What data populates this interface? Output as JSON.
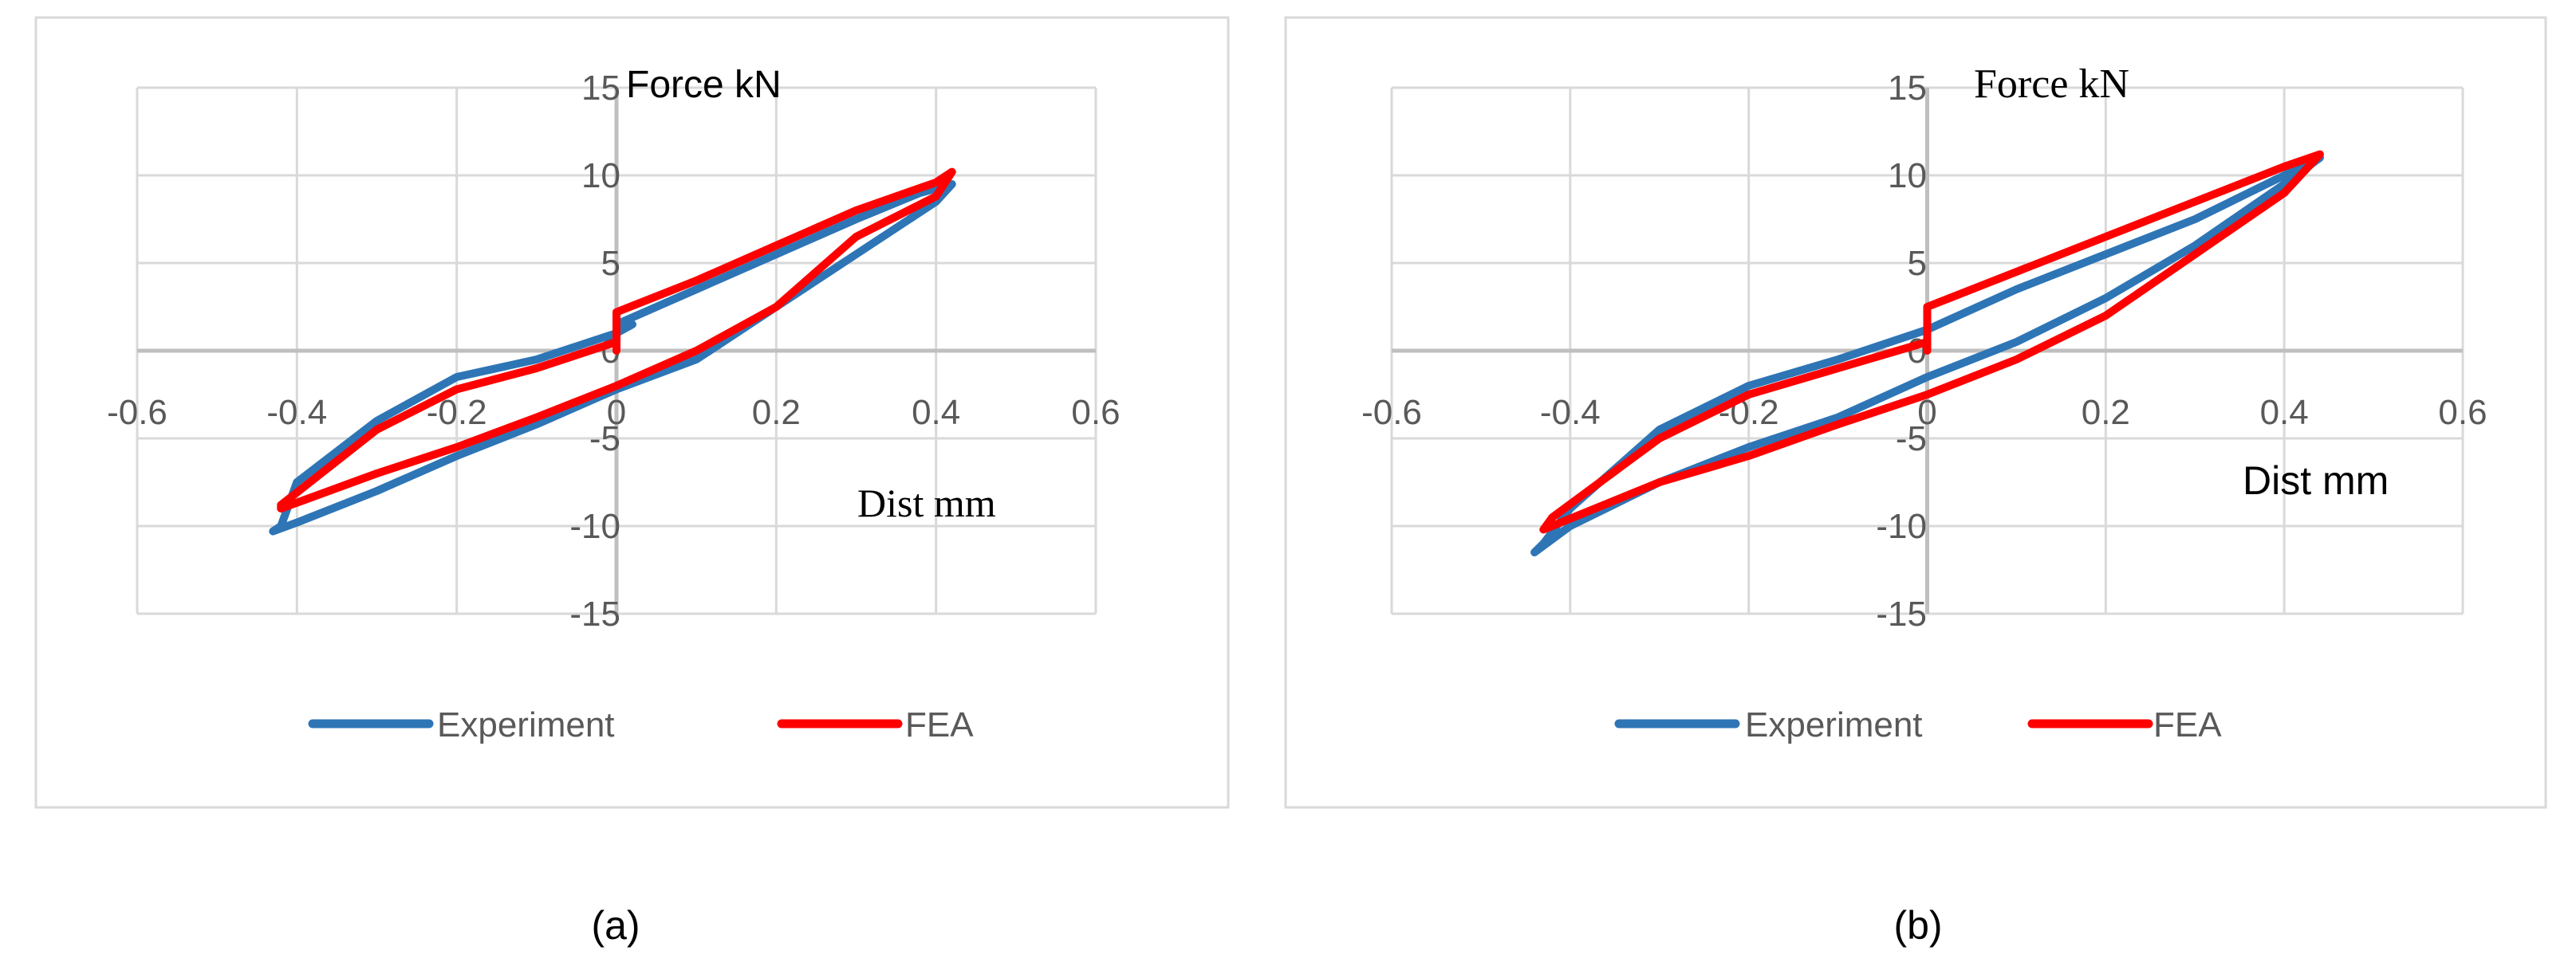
{
  "chart_data": [
    {
      "type": "line",
      "panel_label": "(a)",
      "xlabel": "Dist mm",
      "ylabel": "Force kN",
      "xlim": [
        -0.6,
        0.6
      ],
      "ylim": [
        -15,
        15
      ],
      "x_ticks": [
        "-0.6",
        "-0.4",
        "-0.2",
        "0",
        "0.2",
        "0.4",
        "0.6"
      ],
      "y_ticks": [
        "15",
        "10",
        "5",
        "0",
        "-5",
        "-10",
        "-15"
      ],
      "grid": true,
      "legend_position": "bottom",
      "series": [
        {
          "name": "Experiment",
          "color": "#2E75B6",
          "x": [
            0.0,
            0.1,
            0.2,
            0.3,
            0.38,
            0.42,
            0.4,
            0.3,
            0.2,
            0.1,
            0.0,
            -0.1,
            -0.2,
            -0.3,
            -0.4,
            -0.43,
            -0.42,
            -0.4,
            -0.3,
            -0.2,
            -0.1,
            0.0,
            0.02
          ],
          "y": [
            1.5,
            3.5,
            5.5,
            7.5,
            9.0,
            9.5,
            8.5,
            5.5,
            2.5,
            -0.5,
            -2.2,
            -4.2,
            -6.0,
            -8.0,
            -9.8,
            -10.3,
            -10.0,
            -7.5,
            -4.0,
            -1.5,
            -0.5,
            1.0,
            1.5
          ]
        },
        {
          "name": "FEA",
          "color": "#FF0000",
          "x": [
            0.0,
            0.0,
            0.1,
            0.2,
            0.3,
            0.4,
            0.42,
            0.4,
            0.3,
            0.2,
            0.1,
            0.0,
            -0.1,
            -0.2,
            -0.3,
            -0.42,
            -0.42,
            -0.3,
            -0.2,
            -0.1,
            0.0,
            0.0
          ],
          "y": [
            0.0,
            2.2,
            4.0,
            6.0,
            8.0,
            9.6,
            10.2,
            8.8,
            6.5,
            2.5,
            0.0,
            -2.0,
            -3.8,
            -5.5,
            -7.0,
            -9.0,
            -8.8,
            -4.5,
            -2.2,
            -1.0,
            0.5,
            2.0
          ]
        }
      ]
    },
    {
      "type": "line",
      "panel_label": "(b)",
      "xlabel": "Dist mm",
      "ylabel": "Force kN",
      "xlim": [
        -0.6,
        0.6
      ],
      "ylim": [
        -15,
        15
      ],
      "x_ticks": [
        "-0.6",
        "-0.4",
        "-0.2",
        "0",
        "0.2",
        "0.4",
        "0.6"
      ],
      "y_ticks": [
        "15",
        "10",
        "5",
        "0",
        "-5",
        "-10",
        "-15"
      ],
      "grid": true,
      "legend_position": "bottom",
      "series": [
        {
          "name": "Experiment",
          "color": "#2E75B6",
          "x": [
            0.0,
            0.1,
            0.2,
            0.3,
            0.4,
            0.44,
            0.4,
            0.3,
            0.2,
            0.1,
            0.05,
            0.0,
            -0.1,
            -0.2,
            -0.3,
            -0.4,
            -0.44,
            -0.43,
            -0.4,
            -0.3,
            -0.2,
            -0.1,
            0.0
          ],
          "y": [
            1.2,
            3.5,
            5.5,
            7.5,
            10.0,
            11.0,
            9.5,
            6.0,
            3.0,
            0.5,
            -0.5,
            -1.5,
            -3.8,
            -5.5,
            -7.5,
            -10.0,
            -11.5,
            -11.0,
            -9.0,
            -4.5,
            -2.0,
            -0.5,
            1.2
          ]
        },
        {
          "name": "FEA",
          "color": "#FF0000",
          "x": [
            0.0,
            0.0,
            0.1,
            0.2,
            0.3,
            0.4,
            0.44,
            0.4,
            0.3,
            0.2,
            0.1,
            0.0,
            -0.1,
            -0.2,
            -0.3,
            -0.43,
            -0.42,
            -0.3,
            -0.2,
            -0.1,
            0.0,
            0.0
          ],
          "y": [
            0.0,
            2.5,
            4.5,
            6.5,
            8.5,
            10.5,
            11.2,
            9.0,
            5.5,
            2.0,
            -0.5,
            -2.5,
            -4.2,
            -6.0,
            -7.5,
            -10.2,
            -9.5,
            -5.0,
            -2.5,
            -1.0,
            0.5,
            2.2
          ]
        }
      ]
    }
  ]
}
